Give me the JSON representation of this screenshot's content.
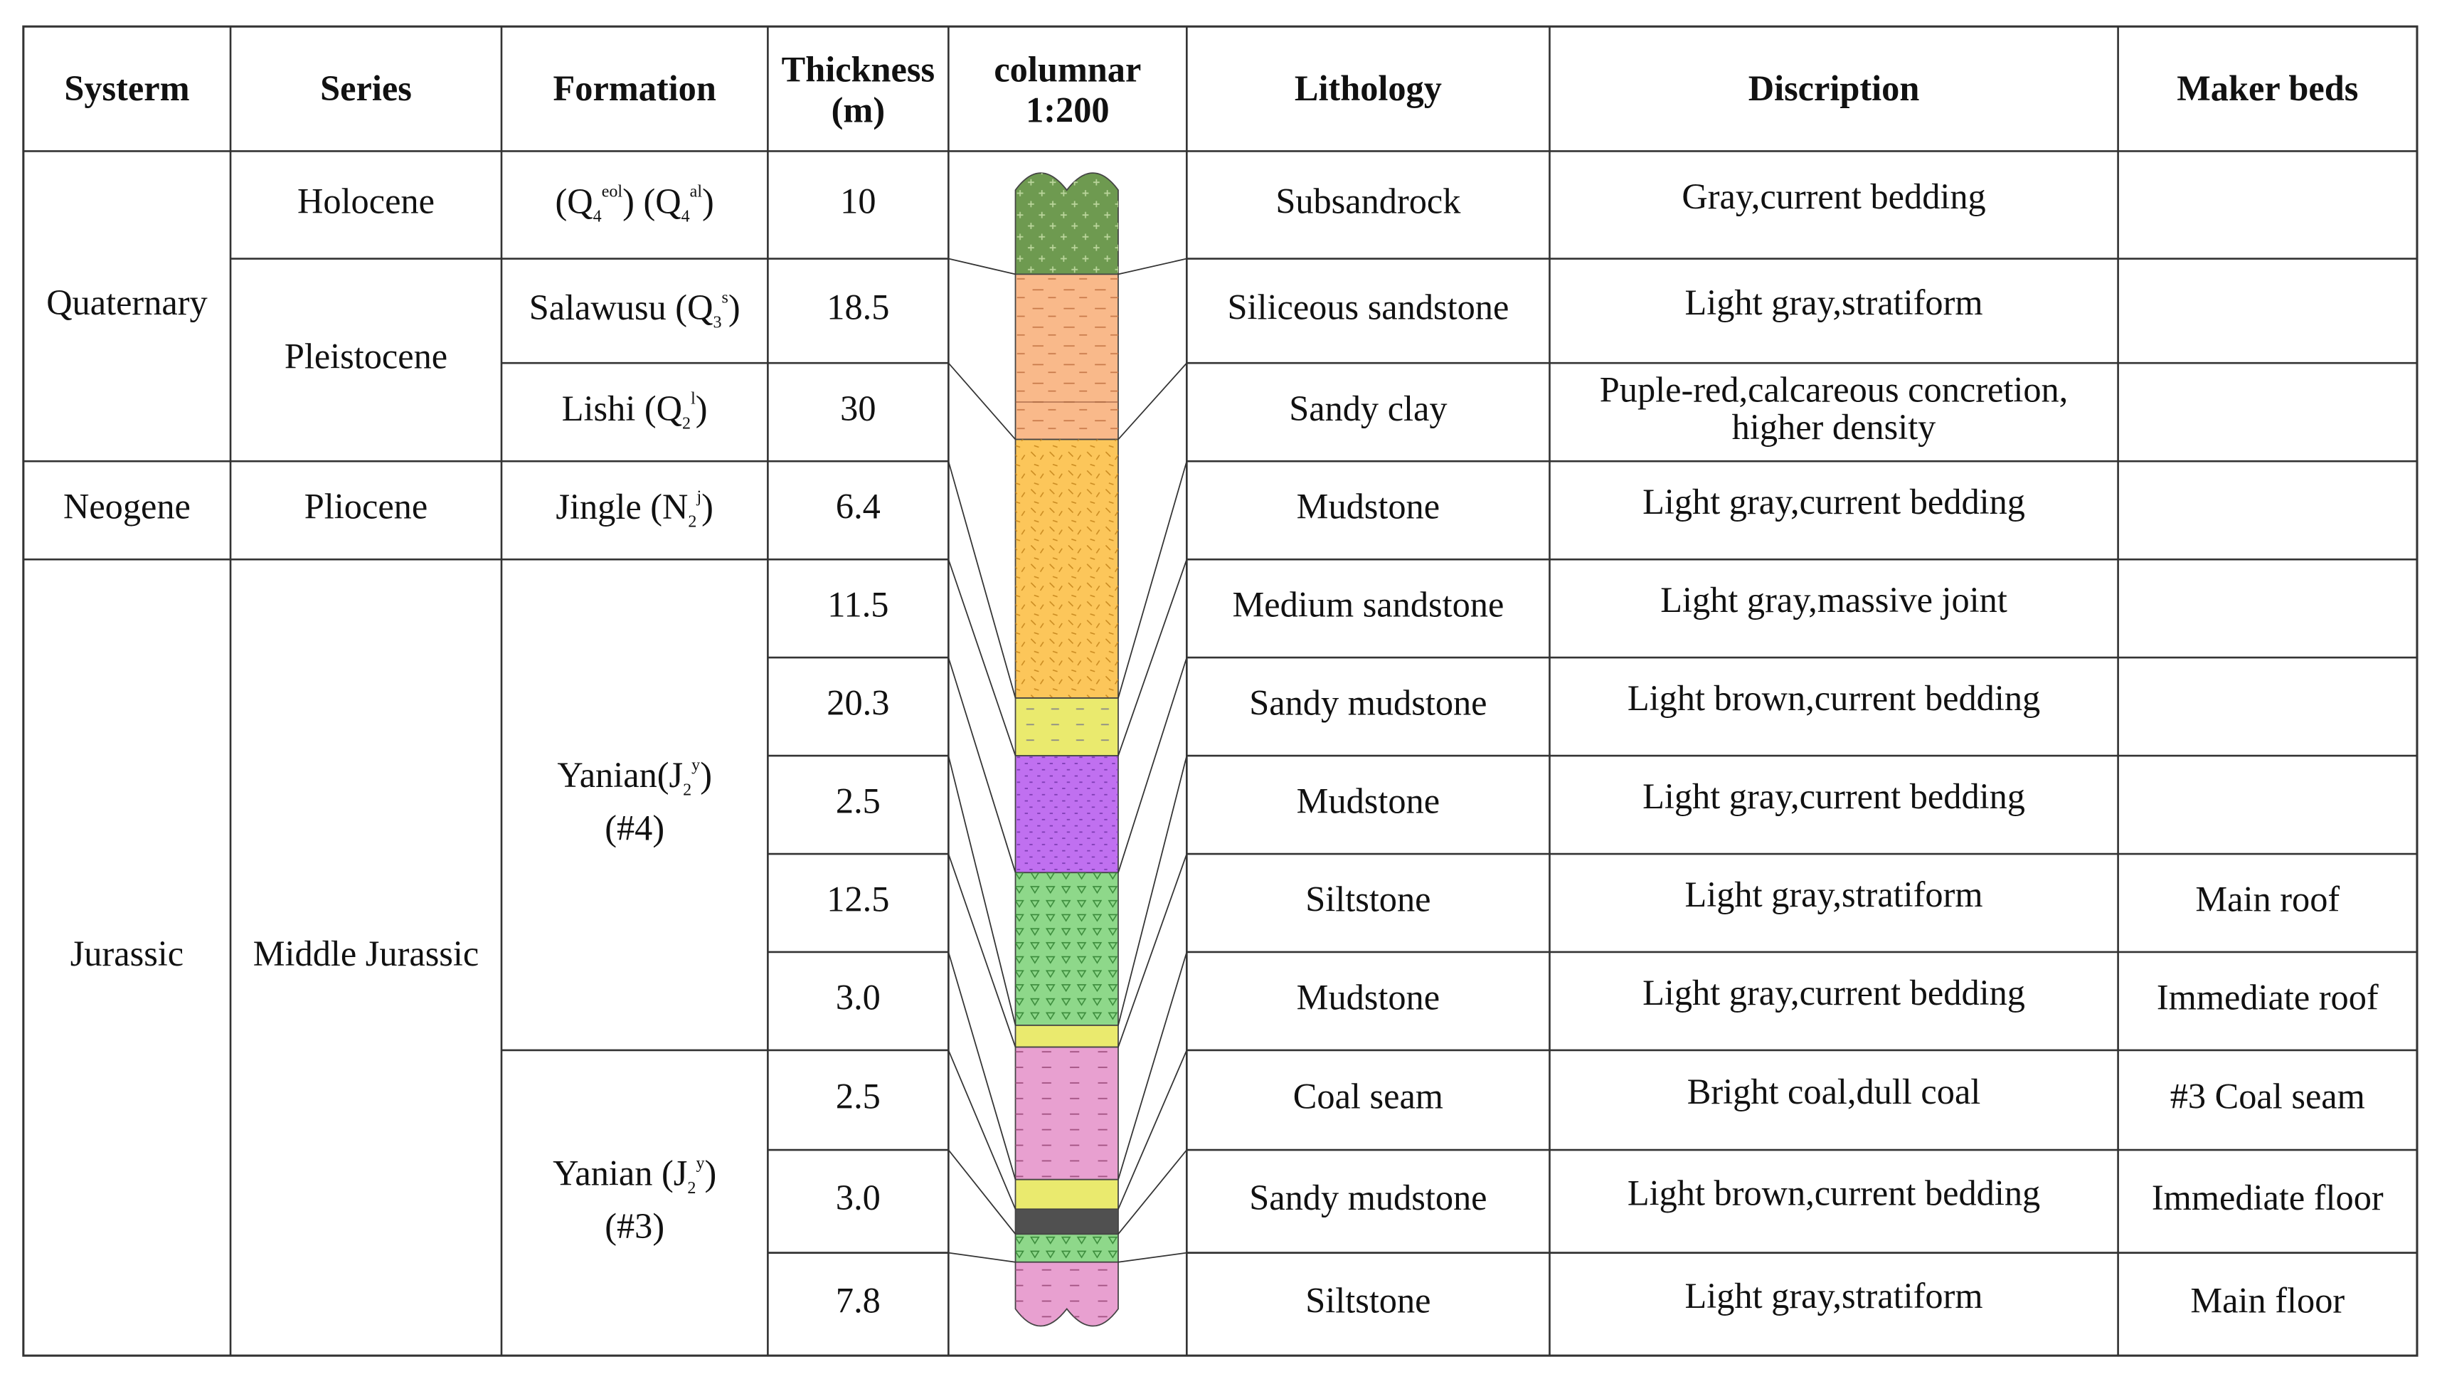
{
  "headers": [
    "Systerm",
    "Series",
    "Formation",
    [
      "Thickness",
      "(m)"
    ],
    [
      "columnar",
      "1:200"
    ],
    "Lithology",
    "Discription",
    "Maker beds"
  ],
  "systems": [
    "Quaternary",
    "Neogene",
    "Jurassic"
  ],
  "series": [
    "Holocene",
    "Pleistocene",
    "Pliocene",
    "Middle Jurassic"
  ],
  "formations": [
    [
      [
        {
          "t": "(Q"
        },
        {
          "sub": "4",
          "sup": "eol"
        },
        {
          "t": ")   (Q"
        },
        {
          "sub": "4",
          "sup": "al"
        },
        {
          "t": ")"
        }
      ]
    ],
    [
      [
        {
          "t": "Salawusu  (Q"
        },
        {
          "sub": "3",
          "sup": "s"
        },
        {
          "t": ")"
        }
      ]
    ],
    [
      [
        {
          "t": "Lishi (Q"
        },
        {
          "sub": "2",
          "sup": "l"
        },
        {
          "t": ")"
        }
      ]
    ],
    [
      [
        {
          "t": "Jingle (N"
        },
        {
          "sub": "2",
          "sup": "j"
        },
        {
          "t": ")"
        }
      ]
    ],
    [
      [
        {
          "t": "Yanian(J"
        },
        {
          "sub": "2",
          "sup": "y"
        },
        {
          "t": ")"
        }
      ],
      [
        {
          "t": "(#4)"
        }
      ]
    ],
    [
      [
        {
          "t": "Yanian (J"
        },
        {
          "sub": "2",
          "sup": "y"
        },
        {
          "t": ")"
        }
      ],
      [
        {
          "t": "(#3)"
        }
      ]
    ]
  ],
  "rows": [
    {
      "thickness": "10",
      "lithology": "Subsandrock",
      "description": "Gray,current bedding",
      "marker": null
    },
    {
      "thickness": "18.5",
      "lithology": "Siliceous sandstone",
      "description": "Light gray,stratiform",
      "marker": null
    },
    {
      "thickness": "30",
      "lithology": "Sandy clay",
      "description": [
        "Puple-red,calcareous concretion,",
        "higher density"
      ],
      "marker": null
    },
    {
      "thickness": "6.4",
      "lithology": "Mudstone",
      "description": "Light gray,current bedding",
      "marker": null
    },
    {
      "thickness": "11.5",
      "lithology": "Medium sandstone",
      "description": "Light gray,massive joint",
      "marker": null
    },
    {
      "thickness": "20.3",
      "lithology": "Sandy mudstone",
      "description": "Light brown,current bedding",
      "marker": null
    },
    {
      "thickness": "2.5",
      "lithology": "Mudstone",
      "description": "Light gray,current bedding",
      "marker": null
    },
    {
      "thickness": "12.5",
      "lithology": "Siltstone",
      "description": "Light gray,stratiform",
      "marker": "Main roof"
    },
    {
      "thickness": "3.0",
      "lithology": "Mudstone",
      "description": "Light gray,current bedding",
      "marker": "Immediate roof"
    },
    {
      "thickness": "2.5",
      "lithology": "Coal seam",
      "description": "Bright coal,dull coal",
      "marker": "#3 Coal seam"
    },
    {
      "thickness": "3.0",
      "lithology": "Sandy mudstone",
      "description": "Light brown,current bedding",
      "marker": "Immediate floor"
    },
    {
      "thickness": "7.8",
      "lithology": "Siltstone",
      "description": "Light gray,stratiform",
      "marker": "Main floor"
    }
  ]
}
